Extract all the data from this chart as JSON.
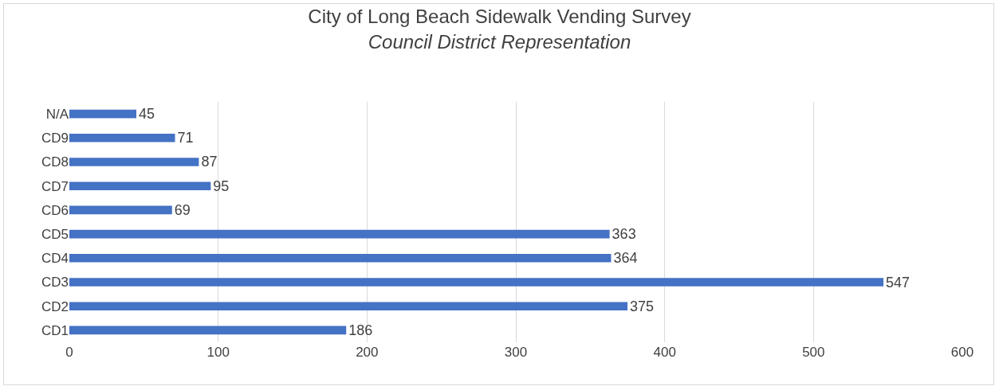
{
  "chart_data": {
    "type": "bar",
    "orientation": "horizontal",
    "title": "City of Long Beach Sidewalk Vending Survey",
    "subtitle": "Council District Representation",
    "categories": [
      "N/A",
      "CD9",
      "CD8",
      "CD7",
      "CD6",
      "CD5",
      "CD4",
      "CD3",
      "CD2",
      "CD1"
    ],
    "values": [
      45,
      71,
      87,
      95,
      69,
      363,
      364,
      547,
      375,
      186
    ],
    "color": "#4472c4",
    "data_labels": true,
    "xlim": [
      0,
      600
    ],
    "xticks": [
      0,
      100,
      200,
      300,
      400,
      500,
      600
    ],
    "grid": "x"
  }
}
